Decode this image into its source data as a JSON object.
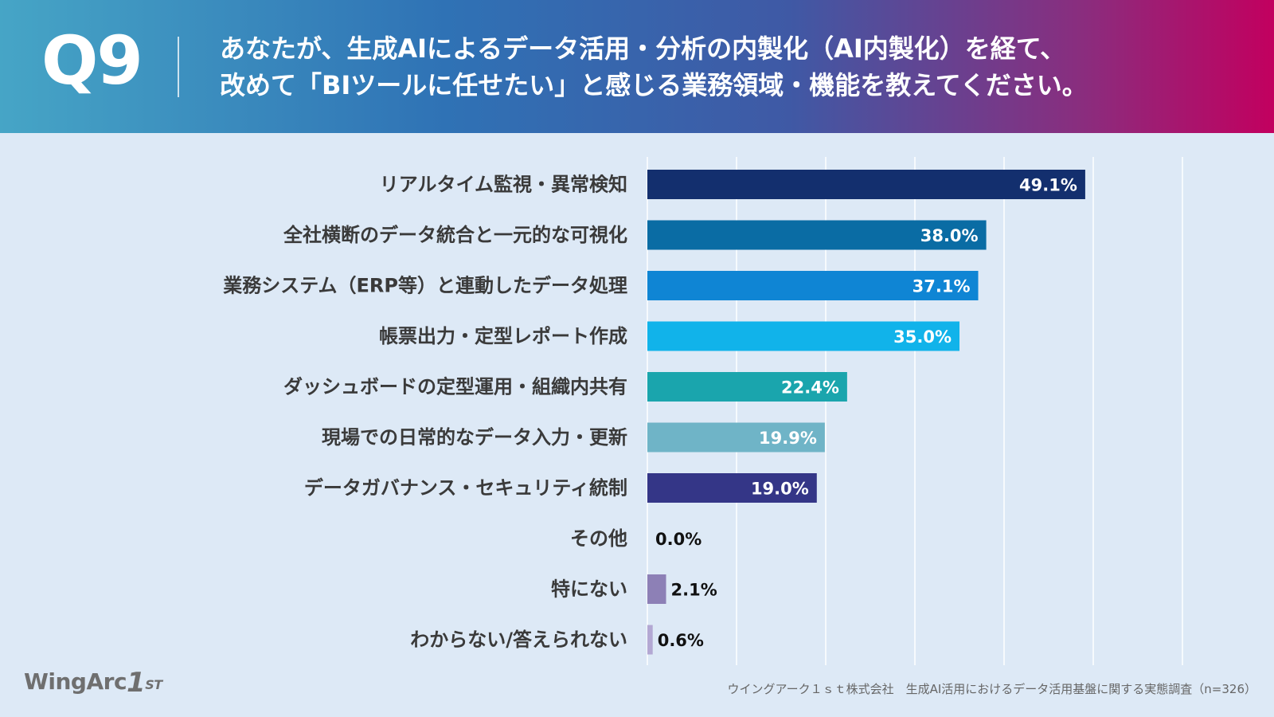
{
  "header": {
    "question_number": "Q9",
    "question_line1": "あなたが、生成AIによるデータ活用・分析の内製化（AI内製化）を経て、",
    "question_line2": "改めて「BIツールに任せたい」と感じる業務領域・機能を教えてください。"
  },
  "chart_data": {
    "type": "bar",
    "orientation": "horizontal",
    "categories": [
      "リアルタイム監視・異常検知",
      "全社横断のデータ統合と一元的な可視化",
      "業務システム（ERP等）と連動したデータ処理",
      "帳票出力・定型レポート作成",
      "ダッシュボードの定型運用・組織内共有",
      "現場での日常的なデータ入力・更新",
      "データガバナンス・セキュリティ統制",
      "その他",
      "特にない",
      "わからない/答えられない"
    ],
    "values": [
      49.1,
      38.0,
      37.1,
      35.0,
      22.4,
      19.9,
      19.0,
      0.0,
      2.1,
      0.6
    ],
    "value_labels": [
      "49.1%",
      "38.0%",
      "37.1%",
      "35.0%",
      "22.4%",
      "19.9%",
      "19.0%",
      "0.0%",
      "2.1%",
      "0.6%"
    ],
    "bar_colors": [
      "#132f6e",
      "#0a6ca4",
      "#0f85d4",
      "#11b3ea",
      "#1aa5ad",
      "#6fb4c7",
      "#343687",
      "#8d80b6",
      "#8d80b6",
      "#b3a8d3"
    ],
    "xlim": [
      0,
      60
    ],
    "grid": true,
    "title": "",
    "xlabel": "",
    "ylabel": ""
  },
  "footer": {
    "logo_text": "WingArc",
    "logo_mark": "1",
    "logo_sup": "ST",
    "source": "ウイングアーク１ｓｔ株式会社　生成AI活用におけるデータ活用基盤に関する実態調査（n=326）"
  }
}
